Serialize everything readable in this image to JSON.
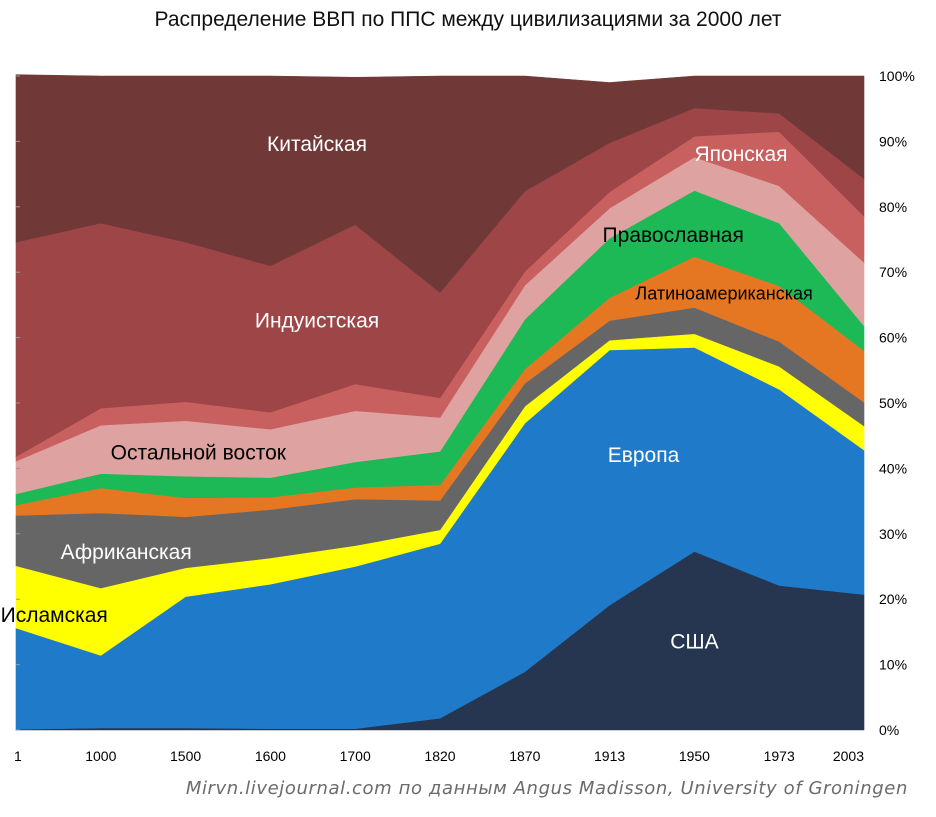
{
  "chart_data": {
    "type": "area",
    "stacked": true,
    "normalized": true,
    "title": "Распределение ВВП по ППС между цивилизациями за 2000 лет",
    "credit": "Mirvn.livejournal.com по данным Angus Madisson, University of Groningen",
    "categories": [
      "1",
      "1000",
      "1500",
      "1600",
      "1700",
      "1820",
      "1870",
      "1913",
      "1950",
      "1973",
      "2003"
    ],
    "ylim": [
      0,
      100
    ],
    "y_ticks": [
      "0%",
      "10%",
      "20%",
      "30%",
      "40%",
      "50%",
      "60%",
      "70%",
      "80%",
      "90%",
      "100%"
    ],
    "y_axis_position": "right",
    "grid": false,
    "series": [
      {
        "name": "США",
        "color": "#263650",
        "values": [
          0.1,
          0.3,
          0.3,
          0.2,
          0.2,
          1.8,
          8.9,
          19.1,
          27.3,
          22.1,
          20.7
        ]
      },
      {
        "name": "Европа",
        "color": "#1f7bc9",
        "values": [
          15.5,
          11.1,
          20.1,
          22.1,
          24.8,
          26.7,
          38.0,
          39.0,
          31.2,
          30.0,
          22.1
        ]
      },
      {
        "name": "Исламская",
        "color": "#ffff00",
        "values": [
          9.5,
          10.3,
          4.4,
          4.0,
          3.2,
          2.1,
          2.6,
          1.5,
          2.1,
          3.5,
          3.7
        ]
      },
      {
        "name": "Африканская",
        "color": "#666666",
        "values": [
          7.7,
          11.5,
          7.8,
          7.4,
          7.1,
          4.5,
          3.5,
          3.0,
          4.0,
          3.8,
          3.6
        ]
      },
      {
        "name": "",
        "color": "#e67722",
        "values": [
          1.6,
          3.8,
          2.9,
          1.9,
          1.8,
          2.4,
          2.2,
          3.5,
          7.8,
          8.5,
          7.9
        ]
      },
      {
        "name": "",
        "color": "#1db956",
        "values": [
          1.7,
          2.2,
          3.3,
          3.0,
          3.9,
          5.1,
          7.6,
          9.1,
          10.1,
          9.6,
          3.8
        ]
      },
      {
        "name": "Остальной восток",
        "color": "#dea3a0",
        "values": [
          5.0,
          7.4,
          8.5,
          7.4,
          7.8,
          5.2,
          5.2,
          4.6,
          5.1,
          5.7,
          9.7
        ]
      },
      {
        "name": "",
        "color": "#c96060",
        "values": [
          0.7,
          2.6,
          2.9,
          2.6,
          4.1,
          3.0,
          2.1,
          2.5,
          3.2,
          8.3,
          7.1
        ]
      },
      {
        "name": "Индуистская",
        "color": "#9e4547",
        "values": [
          32.8,
          28.3,
          24.4,
          22.4,
          24.4,
          16.1,
          12.3,
          7.5,
          4.3,
          2.8,
          5.7
        ]
      },
      {
        "name": "Китайская",
        "color": "#713838",
        "values": [
          25.6,
          22.5,
          25.4,
          29.0,
          22.5,
          33.1,
          17.6,
          9.2,
          4.9,
          5.7,
          15.7
        ]
      }
    ],
    "labels": [
      {
        "text": "США",
        "color": "#ffffff"
      },
      {
        "text": "Европа",
        "color": "#ffffff"
      },
      {
        "text": "Исламская",
        "color": "#000000"
      },
      {
        "text": "Африканская",
        "color": "#ffffff"
      },
      {
        "text": "Латиноамериканская",
        "color": "#000000"
      },
      {
        "text": "Православная",
        "color": "#000000"
      },
      {
        "text": "Остальной восток",
        "color": "#000000"
      },
      {
        "text": "Японская",
        "color": "#ffffff"
      },
      {
        "text": "Индуистская",
        "color": "#ffffff"
      },
      {
        "text": "Китайская",
        "color": "#ffffff"
      }
    ]
  }
}
